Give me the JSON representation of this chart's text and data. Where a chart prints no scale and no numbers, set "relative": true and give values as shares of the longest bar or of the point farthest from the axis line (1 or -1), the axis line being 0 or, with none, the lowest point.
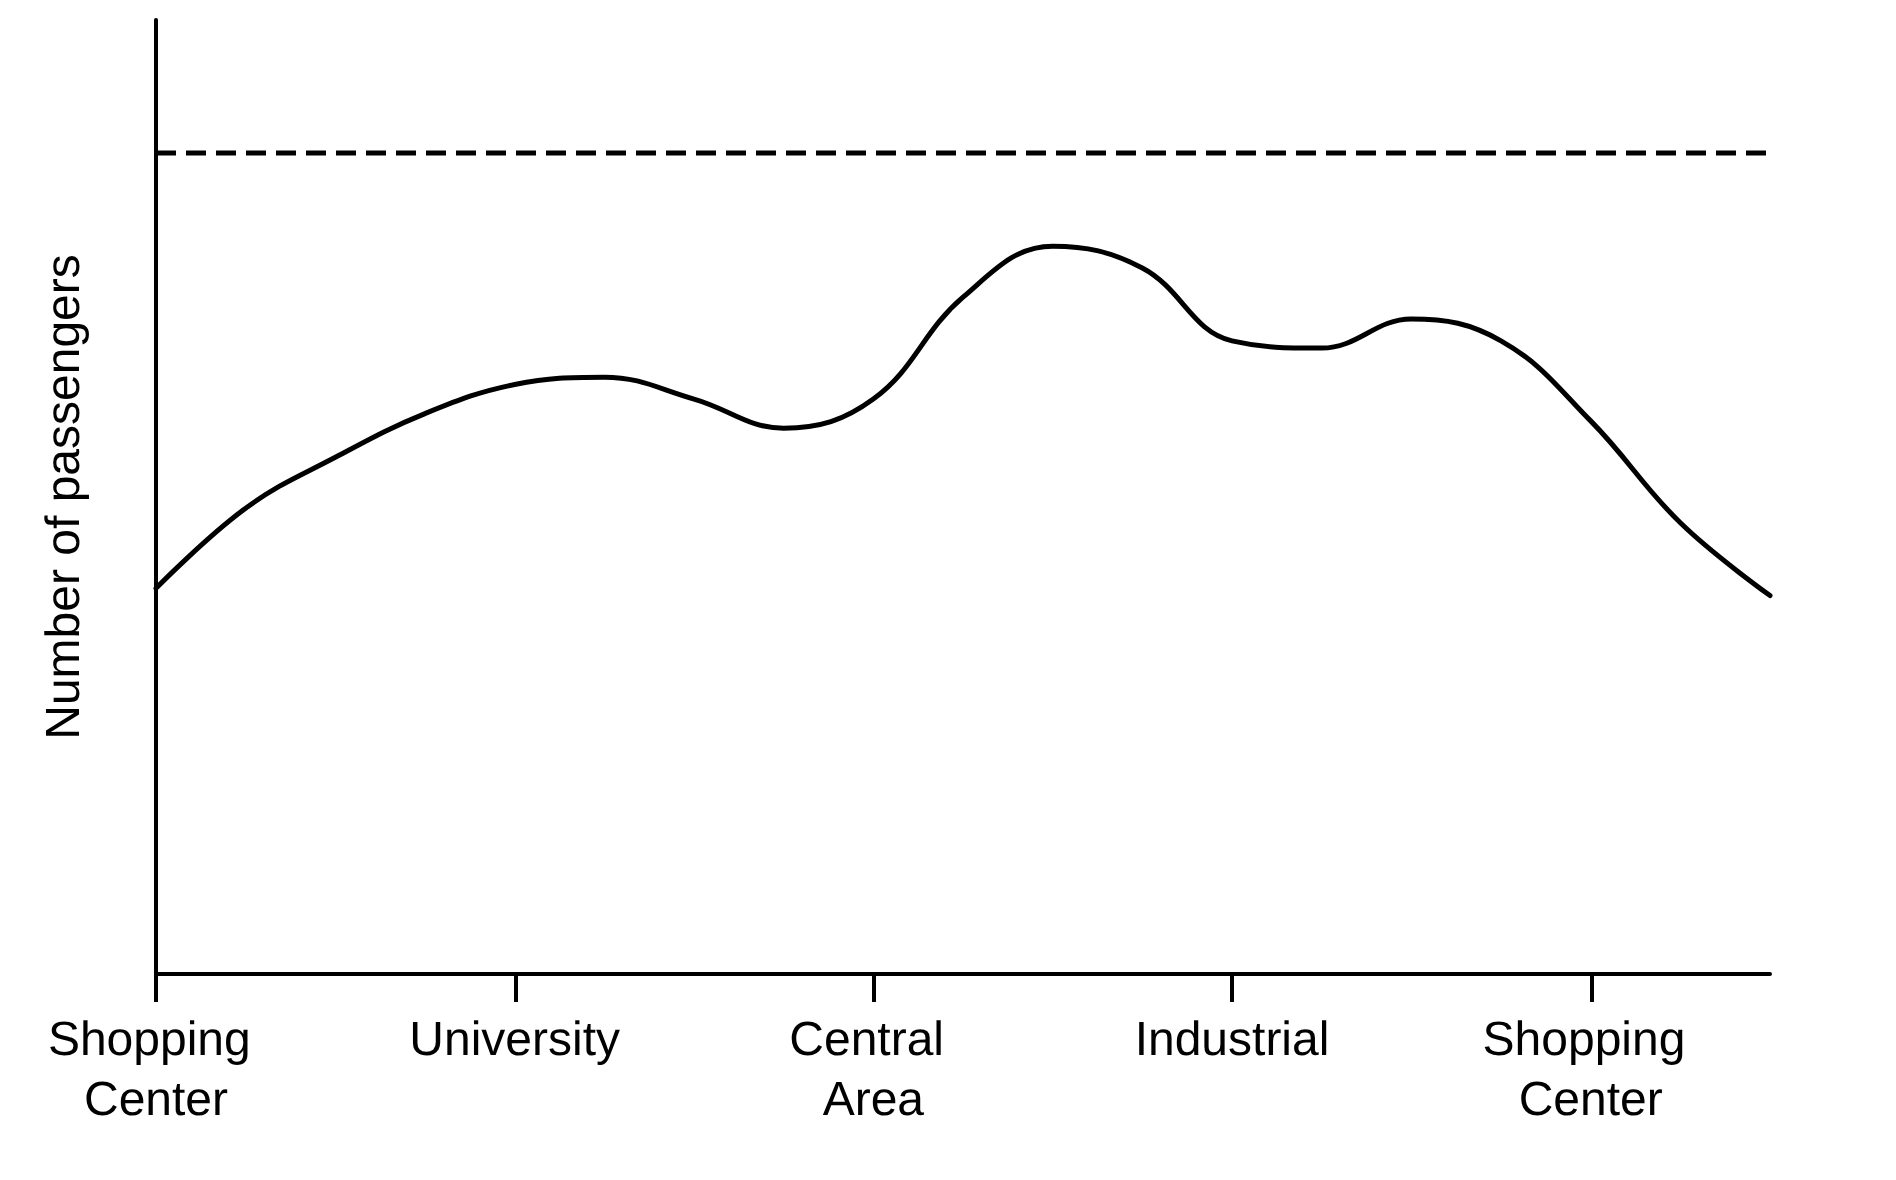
{
  "chart_data": {
    "type": "line",
    "ylabel": "Number of passengers",
    "relative": true,
    "categories": [
      "Shopping Center",
      null,
      null,
      null,
      "University",
      null,
      null,
      null,
      "Central Area",
      null,
      null,
      null,
      "Industrial",
      null,
      null,
      null,
      "Shopping Center",
      null,
      null
    ],
    "series": [
      {
        "color": "#000000",
        "values": [
          0.53,
          0.64,
          0.71,
          0.77,
          0.81,
          0.82,
          0.79,
          0.75,
          0.79,
          0.93,
          1.0,
          0.97,
          0.87,
          0.86,
          0.9,
          0.87,
          0.76,
          0.62,
          0.52
        ]
      }
    ],
    "ref_lines": [
      {
        "axis": "y",
        "value": 1.13,
        "color": "#000000",
        "line_style": "dashed"
      }
    ],
    "marker": "none",
    "line_style": "solid",
    "grid": false
  }
}
